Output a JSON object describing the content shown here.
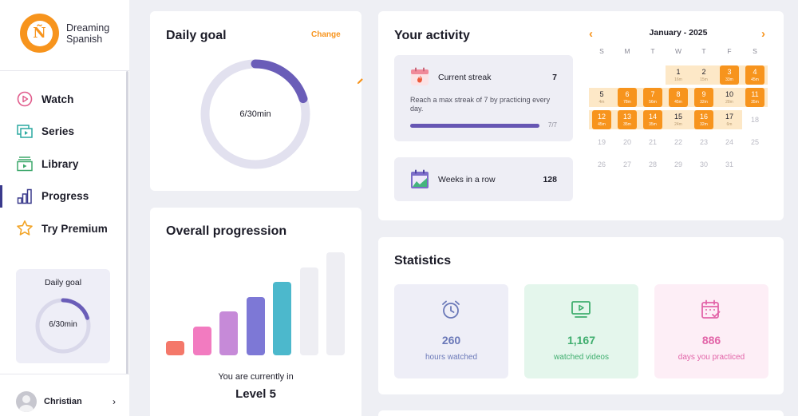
{
  "brand": {
    "name_line1": "Dreaming",
    "name_line2": "Spanish",
    "logo_glyph": "Ñ",
    "color": "#f7941d"
  },
  "nav": [
    {
      "label": "Watch",
      "icon": "play-circle-icon",
      "active": false
    },
    {
      "label": "Series",
      "icon": "series-icon",
      "active": false
    },
    {
      "label": "Library",
      "icon": "library-icon",
      "active": false
    },
    {
      "label": "Progress",
      "icon": "progress-chart-icon",
      "active": true
    },
    {
      "label": "Try Premium",
      "icon": "star-icon",
      "active": false
    }
  ],
  "sidebar_goal": {
    "title": "Daily goal",
    "value": "6/30min",
    "progress": 0.2
  },
  "user": {
    "name": "Christian",
    "chevron": "›"
  },
  "daily_goal": {
    "title": "Daily goal",
    "change_label": "Change",
    "value": "6/30min",
    "progress": 0.2
  },
  "progression": {
    "title": "Overall progression",
    "subtitle": "You are currently in",
    "level": "Level 5",
    "levels": [
      {
        "level": 1,
        "color": "#f4786a",
        "reached": true
      },
      {
        "level": 2,
        "color": "#f27bc0",
        "reached": true
      },
      {
        "level": 3,
        "color": "#c68ad8",
        "reached": true
      },
      {
        "level": 4,
        "color": "#7d78d6",
        "reached": true
      },
      {
        "level": 5,
        "color": "#4cb8cc",
        "reached": true
      },
      {
        "level": 6,
        "color": "#eeeef3",
        "reached": false
      },
      {
        "level": 7,
        "color": "#eeeef3",
        "reached": false
      }
    ]
  },
  "activity": {
    "title": "Your activity",
    "streak": {
      "label": "Current streak",
      "value": "7",
      "description": "Reach a max streak of 7 by practicing every day.",
      "fraction": "7/7",
      "progress": 1.0
    },
    "weeks": {
      "label": "Weeks in a row",
      "value": "128"
    }
  },
  "calendar": {
    "title": "January - 2025",
    "prev": "‹",
    "next": "›",
    "weekdays": [
      "S",
      "M",
      "T",
      "W",
      "T",
      "F",
      "S"
    ],
    "weeks": [
      [
        null,
        null,
        null,
        {
          "day": "1",
          "mins": "16m",
          "state": "light"
        },
        {
          "day": "2",
          "mins": "15m",
          "state": "light"
        },
        {
          "day": "3",
          "mins": "33m",
          "state": "strong"
        },
        {
          "day": "4",
          "mins": "45m",
          "state": "strong"
        }
      ],
      [
        {
          "day": "5",
          "mins": "4m",
          "state": "light"
        },
        {
          "day": "6",
          "mins": "78m",
          "state": "strong"
        },
        {
          "day": "7",
          "mins": "56m",
          "state": "strong"
        },
        {
          "day": "8",
          "mins": "45m",
          "state": "strong"
        },
        {
          "day": "9",
          "mins": "32m",
          "state": "strong"
        },
        {
          "day": "10",
          "mins": "28m",
          "state": "light"
        },
        {
          "day": "11",
          "mins": "35m",
          "state": "strong"
        }
      ],
      [
        {
          "day": "12",
          "mins": "45m",
          "state": "strong"
        },
        {
          "day": "13",
          "mins": "35m",
          "state": "strong"
        },
        {
          "day": "14",
          "mins": "35m",
          "state": "strong"
        },
        {
          "day": "15",
          "mins": "24m",
          "state": "light"
        },
        {
          "day": "16",
          "mins": "32m",
          "state": "strong"
        },
        {
          "day": "17",
          "mins": "6m",
          "state": "light"
        },
        {
          "day": "18",
          "mins": "",
          "state": "future"
        }
      ],
      [
        {
          "day": "19",
          "mins": "",
          "state": "future"
        },
        {
          "day": "20",
          "mins": "",
          "state": "future"
        },
        {
          "day": "21",
          "mins": "",
          "state": "future"
        },
        {
          "day": "22",
          "mins": "",
          "state": "future"
        },
        {
          "day": "23",
          "mins": "",
          "state": "future"
        },
        {
          "day": "24",
          "mins": "",
          "state": "future"
        },
        {
          "day": "25",
          "mins": "",
          "state": "future"
        }
      ],
      [
        {
          "day": "26",
          "mins": "",
          "state": "future"
        },
        {
          "day": "27",
          "mins": "",
          "state": "future"
        },
        {
          "day": "28",
          "mins": "",
          "state": "future"
        },
        {
          "day": "29",
          "mins": "",
          "state": "future"
        },
        {
          "day": "30",
          "mins": "",
          "state": "future"
        },
        {
          "day": "31",
          "mins": "",
          "state": "future"
        },
        null
      ]
    ]
  },
  "statistics": {
    "title": "Statistics",
    "items": [
      {
        "value": "260",
        "label": "hours watched",
        "icon": "alarm-clock-icon",
        "bg": "#eeeef7",
        "color": "#6a78b8"
      },
      {
        "value": "1,167",
        "label": "watched videos",
        "icon": "video-screen-icon",
        "bg": "#e4f6ec",
        "color": "#3fae6e"
      },
      {
        "value": "886",
        "label": "days you practiced",
        "icon": "calendar-check-icon",
        "bg": "#fdeef6",
        "color": "#e264a8"
      }
    ]
  }
}
